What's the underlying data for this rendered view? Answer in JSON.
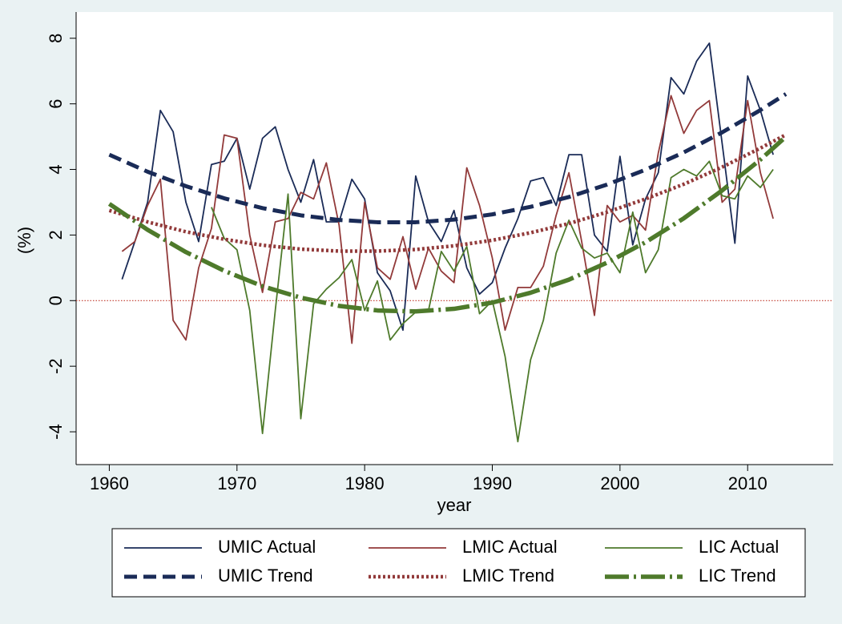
{
  "chart_data": {
    "type": "line",
    "xlabel": "year",
    "ylabel": "(%)",
    "xlim": [
      1957.4,
      2016.7
    ],
    "ylim": [
      -5.0,
      8.8
    ],
    "xticks": [
      1960,
      1970,
      1980,
      1990,
      2000,
      2010
    ],
    "yticks": [
      -4,
      -2,
      0,
      2,
      4,
      6,
      8
    ],
    "grid": false,
    "hline": {
      "value": 0,
      "color": "#c0392b"
    },
    "legend": "bottom",
    "series": [
      {
        "name": "UMIC Actual",
        "color": "#1a2b57",
        "style": "solid",
        "x": [
          1961,
          1962,
          1963,
          1964,
          1965,
          1966,
          1967,
          1968,
          1969,
          1970,
          1971,
          1972,
          1973,
          1974,
          1975,
          1976,
          1977,
          1978,
          1979,
          1980,
          1981,
          1982,
          1983,
          1984,
          1985,
          1986,
          1987,
          1988,
          1989,
          1990,
          1991,
          1992,
          1993,
          1994,
          1995,
          1996,
          1997,
          1998,
          1999,
          2000,
          2001,
          2002,
          2003,
          2004,
          2005,
          2006,
          2007,
          2008,
          2009,
          2010,
          2011,
          2012
        ],
        "values": [
          0.65,
          1.8,
          3.0,
          5.8,
          5.15,
          3.0,
          1.8,
          4.15,
          4.25,
          4.95,
          3.4,
          4.95,
          5.3,
          4.0,
          3.0,
          4.3,
          2.4,
          2.4,
          3.7,
          3.1,
          0.85,
          0.3,
          -0.9,
          3.8,
          2.4,
          1.8,
          2.75,
          1.0,
          0.2,
          0.55,
          1.6,
          2.5,
          3.65,
          3.75,
          2.9,
          4.45,
          4.45,
          2.0,
          1.5,
          4.4,
          1.7,
          3.1,
          3.9,
          6.8,
          6.3,
          7.3,
          7.85,
          4.8,
          1.75,
          6.85,
          5.8,
          4.45
        ]
      },
      {
        "name": "LMIC Actual",
        "color": "#923a3a",
        "style": "solid",
        "x": [
          1961,
          1962,
          1963,
          1964,
          1965,
          1966,
          1967,
          1968,
          1969,
          1970,
          1971,
          1972,
          1973,
          1974,
          1975,
          1976,
          1977,
          1978,
          1979,
          1980,
          1981,
          1982,
          1983,
          1984,
          1985,
          1986,
          1987,
          1988,
          1989,
          1990,
          1991,
          1992,
          1993,
          1994,
          1995,
          1996,
          1997,
          1998,
          1999,
          2000,
          2001,
          2002,
          2003,
          2004,
          2005,
          2006,
          2007,
          2008,
          2009,
          2010,
          2011,
          2012
        ],
        "values": [
          1.5,
          1.8,
          2.9,
          3.7,
          -0.6,
          -1.2,
          1.0,
          2.2,
          5.05,
          4.95,
          2.0,
          0.25,
          2.4,
          2.5,
          3.3,
          3.1,
          4.2,
          2.3,
          -1.3,
          3.0,
          1.0,
          0.65,
          1.95,
          0.35,
          1.6,
          0.9,
          0.55,
          4.05,
          2.9,
          1.3,
          -0.9,
          0.4,
          0.4,
          1.05,
          2.6,
          3.9,
          1.8,
          -0.45,
          2.9,
          2.4,
          2.6,
          2.15,
          4.5,
          6.25,
          5.1,
          5.8,
          6.1,
          3.0,
          3.4,
          6.1,
          3.9,
          2.5
        ]
      },
      {
        "name": "LIC Actual",
        "color": "#4e7a2b",
        "style": "solid",
        "x": [
          1968,
          1969,
          1970,
          1971,
          1972,
          1973,
          1974,
          1975,
          1976,
          1977,
          1978,
          1979,
          1980,
          1981,
          1982,
          1983,
          1984,
          1985,
          1986,
          1987,
          1988,
          1989,
          1990,
          1991,
          1992,
          1993,
          1994,
          1995,
          1996,
          1997,
          1998,
          1999,
          2000,
          2001,
          2002,
          2003,
          2004,
          2005,
          2006,
          2007,
          2008,
          2009,
          2010,
          2011,
          2012
        ],
        "values": [
          2.85,
          1.9,
          1.55,
          -0.3,
          -4.05,
          -0.3,
          3.25,
          -3.6,
          -0.1,
          0.35,
          0.7,
          1.25,
          -0.3,
          0.6,
          -1.2,
          -0.7,
          -0.35,
          -0.3,
          1.5,
          0.9,
          1.65,
          -0.4,
          0.0,
          -1.7,
          -4.3,
          -1.8,
          -0.6,
          1.45,
          2.45,
          1.6,
          1.3,
          1.45,
          0.85,
          2.7,
          0.85,
          1.55,
          3.75,
          4.0,
          3.8,
          4.25,
          3.2,
          3.1,
          3.8,
          3.45,
          4.0
        ]
      },
      {
        "name": "UMIC Trend",
        "color": "#1a2b57",
        "style": "dash",
        "x": [
          1960,
          1963,
          1966,
          1969,
          1972,
          1975,
          1978,
          1981,
          1984,
          1987,
          1990,
          1993,
          1996,
          1999,
          2002,
          2005,
          2008,
          2011,
          2013
        ],
        "values": [
          4.45,
          3.93,
          3.49,
          3.12,
          2.82,
          2.6,
          2.46,
          2.39,
          2.39,
          2.47,
          2.63,
          2.86,
          3.16,
          3.54,
          3.99,
          4.52,
          5.13,
          5.81,
          6.3
        ]
      },
      {
        "name": "LMIC Trend",
        "color": "#923a3a",
        "style": "dot",
        "x": [
          1960,
          1963,
          1966,
          1969,
          1972,
          1975,
          1978,
          1981,
          1984,
          1987,
          1990,
          1993,
          1996,
          1999,
          2002,
          2005,
          2008,
          2011,
          2013
        ],
        "values": [
          2.75,
          2.4,
          2.1,
          1.87,
          1.69,
          1.57,
          1.51,
          1.51,
          1.56,
          1.67,
          1.84,
          2.07,
          2.35,
          2.7,
          3.1,
          3.55,
          4.07,
          4.65,
          5.06
        ]
      },
      {
        "name": "LIC Trend",
        "color": "#4e7a2b",
        "style": "dashdot",
        "x": [
          1960,
          1963,
          1966,
          1969,
          1972,
          1975,
          1978,
          1981,
          1984,
          1987,
          1990,
          1993,
          1996,
          1999,
          2002,
          2005,
          2008,
          2011,
          2013
        ],
        "values": [
          2.95,
          2.16,
          1.48,
          0.91,
          0.44,
          0.09,
          -0.16,
          -0.3,
          -0.33,
          -0.25,
          -0.06,
          0.24,
          0.64,
          1.16,
          1.78,
          2.51,
          3.36,
          4.3,
          5.0
        ]
      }
    ]
  }
}
